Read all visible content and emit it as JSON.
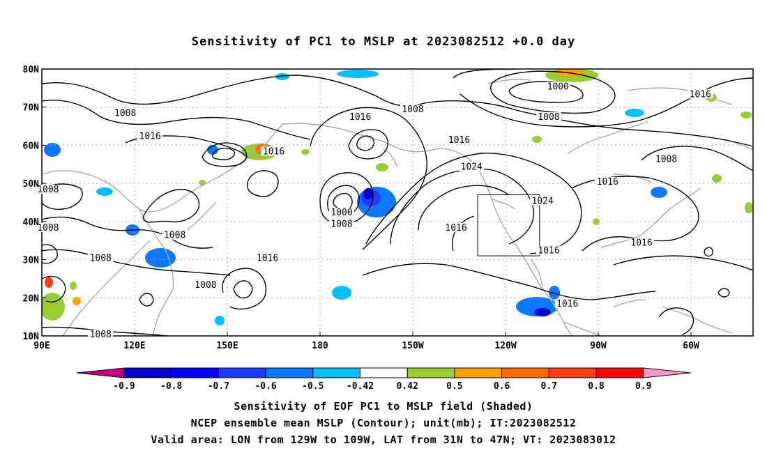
{
  "title": "Sensitivity of PC1 to MSLP at 2023082512 +0.0 day",
  "map": {
    "lon_ticks": [
      "90E",
      "120E",
      "150E",
      "180",
      "150W",
      "120W",
      "90W",
      "60W"
    ],
    "lat_ticks": [
      "80N",
      "70N",
      "60N",
      "50N",
      "40N",
      "30N",
      "20N",
      "10N"
    ],
    "contour_labels": [
      {
        "text": "1008",
        "lon": 117,
        "lat": 68
      },
      {
        "text": "1016",
        "lon": 125,
        "lat": 62
      },
      {
        "text": "1008",
        "lon": 92,
        "lat": 48
      },
      {
        "text": "1008",
        "lon": 92,
        "lat": 38
      },
      {
        "text": "1008",
        "lon": 133,
        "lat": 36
      },
      {
        "text": "1008",
        "lon": 109,
        "lat": 30
      },
      {
        "text": "1008",
        "lon": 143,
        "lat": 23
      },
      {
        "text": "1008",
        "lon": 109,
        "lat": 10
      },
      {
        "text": "1016",
        "lon": 165,
        "lat": 58
      },
      {
        "text": "1016",
        "lon": 193,
        "lat": 67
      },
      {
        "text": "1008",
        "lon": 210,
        "lat": 69
      },
      {
        "text": "1016",
        "lon": 163,
        "lat": 30
      },
      {
        "text": "1000",
        "lon": 187,
        "lat": 42
      },
      {
        "text": "1008",
        "lon": 187,
        "lat": 39
      },
      {
        "text": "1016",
        "lon": 225,
        "lat": 61
      },
      {
        "text": "1024",
        "lon": 229,
        "lat": 54
      },
      {
        "text": "1016",
        "lon": 224,
        "lat": 38
      },
      {
        "text": "1024",
        "lon": 252,
        "lat": 45
      },
      {
        "text": "1016",
        "lon": 254,
        "lat": 32
      },
      {
        "text": "1016",
        "lon": 260,
        "lat": 18
      },
      {
        "text": "1000",
        "lon": 257,
        "lat": 75
      },
      {
        "text": "1008",
        "lon": 254,
        "lat": 67
      },
      {
        "text": "1016",
        "lon": 273,
        "lat": 50
      },
      {
        "text": "1016",
        "lon": 303,
        "lat": 73
      },
      {
        "text": "1008",
        "lon": 292,
        "lat": 56
      },
      {
        "text": "1016",
        "lon": 284,
        "lat": 34
      }
    ],
    "valid_box": {
      "lon_min": 231,
      "lon_max": 251,
      "lat_min": 31,
      "lat_max": 47
    }
  },
  "colorbar": {
    "labels": [
      "-0.9",
      "-0.8",
      "-0.7",
      "-0.6",
      "-0.5",
      "-0.42",
      "0.42",
      "0.5",
      "0.6",
      "0.7",
      "0.8",
      "0.9"
    ],
    "colors": [
      "#c0007e",
      "#0000c8",
      "#0000ff",
      "#1e3cff",
      "#0a78ff",
      "#00bfff",
      "#ffffff",
      "#9acd32",
      "#ff9f00",
      "#ff6a00",
      "#ff3c14",
      "#ff0000",
      "#ff9ac8"
    ]
  },
  "captions": [
    "Sensitivity of EOF PC1 to MSLP field (Shaded)",
    "NCEP ensemble mean MSLP (Contour); unit(mb); IT:2023082512",
    "Valid area: LON from 129W to 109W, LAT from 31N to 47N; VT: 2023083012"
  ]
}
